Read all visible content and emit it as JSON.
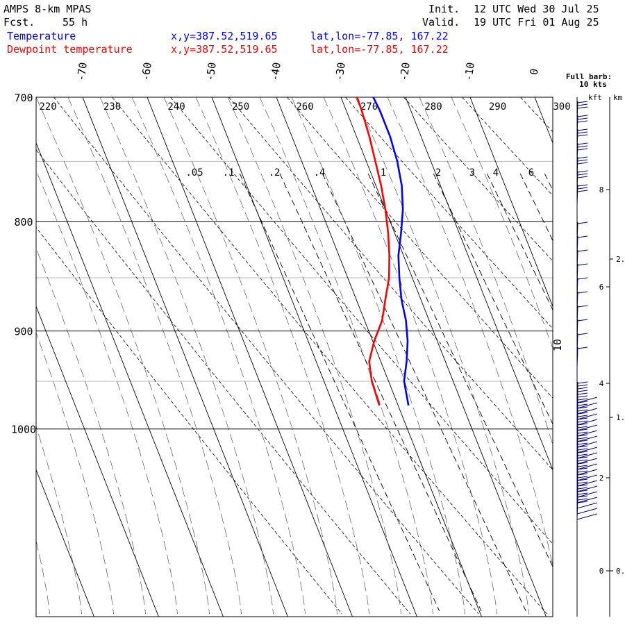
{
  "header": {
    "model": "AMPS 8-km MPAS",
    "fcst_label": "Fcst.",
    "fcst_value": "55 h",
    "init_label": "Init.",
    "init_value": "12 UTC Wed 30 Jul 25",
    "valid_label": "Valid.",
    "valid_value": "19 UTC Fri 01 Aug 25",
    "series": [
      {
        "name": "Temperature",
        "xy": "x,y=387.52,519.65",
        "latlon": "lat,lon=-77.85, 167.22",
        "color": "#0000ff"
      },
      {
        "name": "Dewpoint temperature",
        "xy": "x,y=387.52,519.65",
        "latlon": "lat,lon=-77.85, 167.22",
        "color": "#ff0000"
      }
    ]
  },
  "chart_data": {
    "type": "line",
    "skew_t": true,
    "p_ticks": [
      700,
      800,
      900,
      1000
    ],
    "y_label_pressure_axis": [
      700,
      800,
      900,
      1000
    ],
    "p_range": [
      700,
      1040
    ],
    "temp_ticks": [
      -70,
      -60,
      -50,
      -40,
      -30,
      -20,
      -10,
      0
    ],
    "theta_labels": [
      220,
      230,
      240,
      250,
      260,
      270,
      280,
      290,
      300
    ],
    "mixing_ratio_labels": [
      ".05",
      ".1",
      ".2",
      ".4",
      "1",
      "2",
      "3",
      "4",
      "6"
    ],
    "extra_label": "10",
    "grid": true,
    "series": [
      {
        "name": "Temperature",
        "color": "#0000ff",
        "points": [
          [
            975,
            -38.4
          ],
          [
            950,
            -37.6
          ],
          [
            930,
            -36.0
          ],
          [
            910,
            -34.6
          ],
          [
            890,
            -33.6
          ],
          [
            870,
            -33.0
          ],
          [
            850,
            -32.0
          ],
          [
            830,
            -30.8
          ],
          [
            810,
            -29.0
          ],
          [
            790,
            -27.3
          ],
          [
            770,
            -26.0
          ],
          [
            750,
            -25.2
          ],
          [
            730,
            -24.8
          ],
          [
            710,
            -24.8
          ],
          [
            700,
            -25.0
          ]
        ]
      },
      {
        "name": "Dewpoint temperature",
        "color": "#ff0000",
        "points": [
          [
            975,
            -42.9
          ],
          [
            950,
            -42.6
          ],
          [
            930,
            -41.8
          ],
          [
            910,
            -39.8
          ],
          [
            890,
            -37.3
          ],
          [
            870,
            -35.5
          ],
          [
            850,
            -33.6
          ],
          [
            830,
            -32.2
          ],
          [
            810,
            -31.0
          ],
          [
            790,
            -30.0
          ],
          [
            770,
            -29.2
          ],
          [
            750,
            -28.6
          ],
          [
            730,
            -28.0
          ],
          [
            710,
            -27.6
          ],
          [
            700,
            -27.5
          ]
        ]
      }
    ]
  },
  "wind_panel": {
    "title_line1": "Full barb:",
    "title_line2": "10 kts",
    "unit_kft": "kft",
    "unit_km": "km",
    "kft_ticks": [
      "8",
      "6",
      "4",
      "2",
      "0"
    ],
    "km_ticks": [
      "2.",
      "1.",
      "0."
    ]
  }
}
